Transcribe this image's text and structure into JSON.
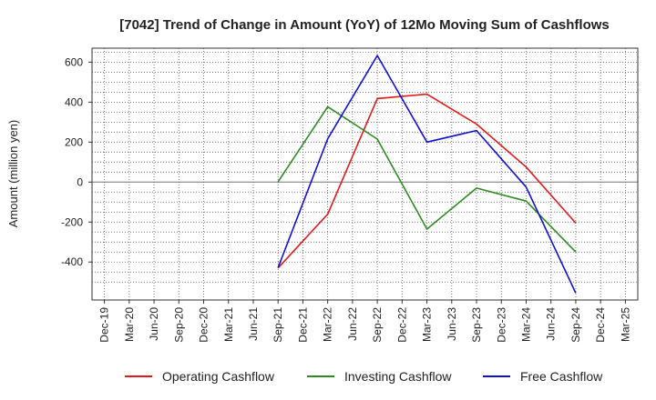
{
  "chart_data": {
    "type": "line",
    "title": "[7042]  Trend of Change in Amount (YoY) of 12Mo Moving Sum of Cashflows",
    "xlabel": "",
    "ylabel": "Amount (million yen)",
    "categories": [
      "Dec-19",
      "Mar-20",
      "Jun-20",
      "Sep-20",
      "Dec-20",
      "Mar-21",
      "Jun-21",
      "Sep-21",
      "Dec-21",
      "Mar-22",
      "Jun-22",
      "Sep-22",
      "Dec-22",
      "Mar-23",
      "Jun-23",
      "Sep-23",
      "Dec-23",
      "Mar-24",
      "Jun-24",
      "Sep-24",
      "Dec-24",
      "Mar-25"
    ],
    "ylim": [
      -590,
      670
    ],
    "yticks": [
      -400,
      -200,
      0,
      200,
      400,
      600
    ],
    "ytick_labels": [
      "-400",
      "-200",
      "0",
      "200",
      "400",
      "600"
    ],
    "series": [
      {
        "name": "Operating Cashflow",
        "color": "#e31a1c",
        "values": [
          null,
          null,
          null,
          null,
          null,
          null,
          null,
          -430,
          null,
          -160,
          null,
          418,
          null,
          440,
          null,
          290,
          null,
          75,
          null,
          -205,
          null,
          null
        ]
      },
      {
        "name": "Investing Cashflow",
        "color": "#2e8b22",
        "values": [
          null,
          null,
          null,
          null,
          null,
          null,
          null,
          2,
          null,
          377,
          null,
          215,
          null,
          -235,
          null,
          -30,
          null,
          -95,
          null,
          -350,
          null,
          null
        ]
      },
      {
        "name": "Free Cashflow",
        "color": "#1010d8",
        "values": [
          null,
          null,
          null,
          null,
          null,
          null,
          null,
          -428,
          null,
          217,
          null,
          633,
          null,
          200,
          null,
          258,
          null,
          -25,
          null,
          -555,
          null,
          null
        ]
      }
    ],
    "grid": true,
    "legend": "bottom"
  }
}
